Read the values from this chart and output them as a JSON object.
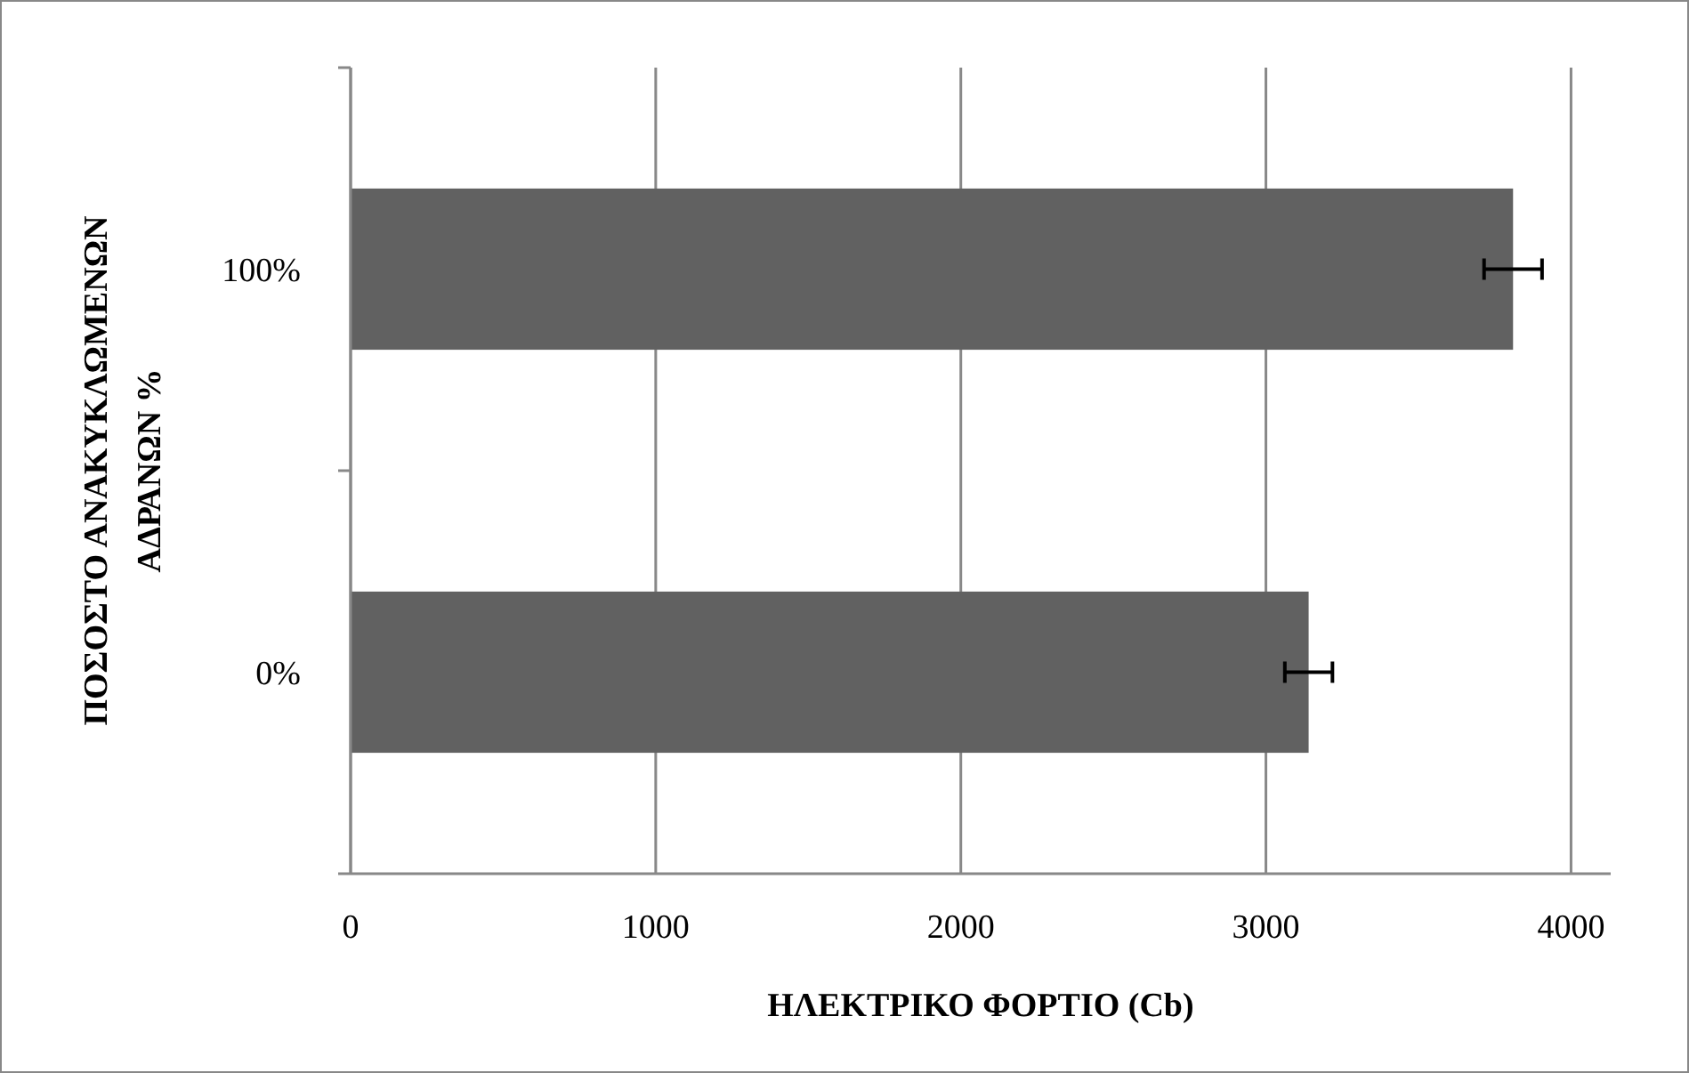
{
  "chart_data": {
    "type": "bar",
    "orientation": "horizontal",
    "xlabel": "ΗΛΕΚΤΡΙΚΟ ΦΟΡΤΙΟ (Cb)",
    "ylabel": "ΠΟΣΟΣΤΟ ΑΝΑΚΥΚΛΩΜΕΝΩΝ ΑΔΡΑΝΩΝ %",
    "categories": [
      "100%",
      "0%"
    ],
    "values": [
      3810,
      3140
    ],
    "errors": [
      95,
      78
    ],
    "color": "#616161",
    "xlim": [
      0,
      4130
    ],
    "xticks": [
      0,
      1000,
      2000,
      3000,
      4000
    ],
    "grid": "x"
  }
}
